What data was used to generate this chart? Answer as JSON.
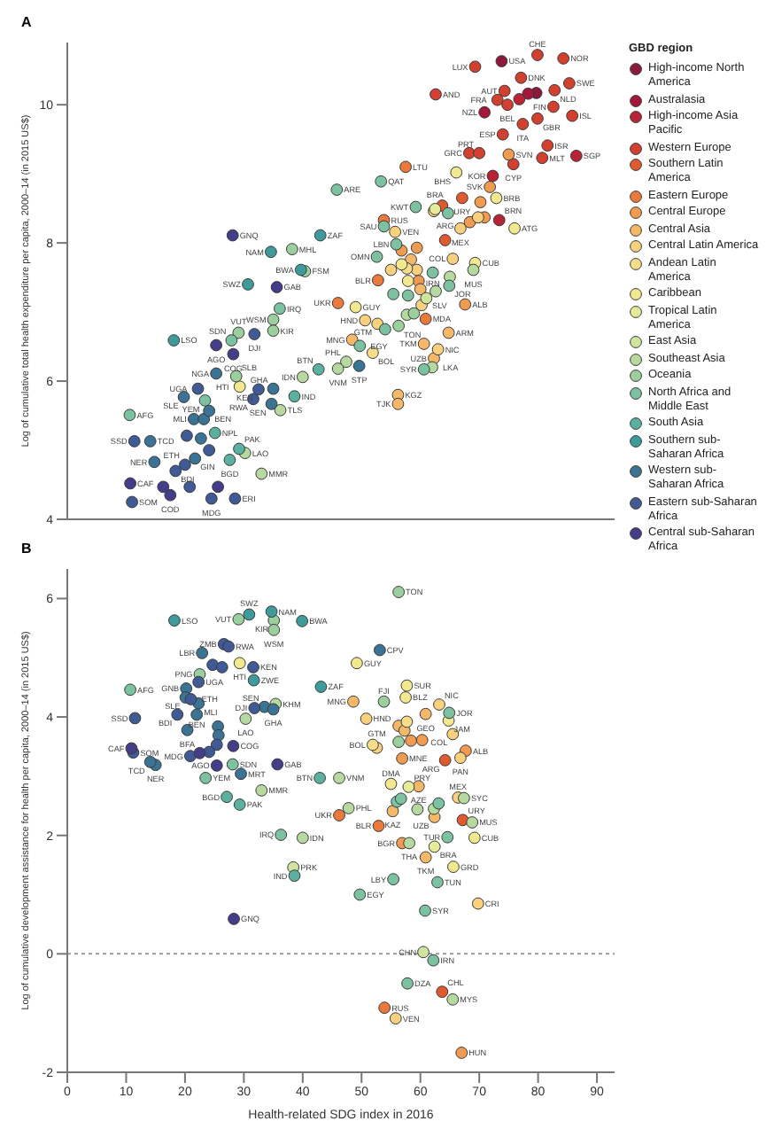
{
  "chart_data": [
    {
      "type": "scatter",
      "title": "A",
      "ylabel": "Log of cumulative total health expenditure per capita, 2000–14 (in 2015 US$)",
      "legend_title": "GBD region",
      "legend": "right",
      "marker": "circle",
      "tick_labels": "y",
      "xlim": [
        0,
        93
      ],
      "xticks": [
        0,
        10,
        20,
        30,
        40,
        50,
        60,
        70,
        80,
        90
      ],
      "ylim": [
        4,
        10.9
      ],
      "yticks": [
        4,
        6,
        8,
        10
      ],
      "series": [
        {
          "name": "High-income North America",
          "color": "#8b1a3a",
          "x": [
            73.8,
            79.7
          ],
          "values": [
            10.63,
            10.17
          ]
        },
        {
          "name": "Australasia",
          "color": "#a3173b",
          "x": [
            78.3,
            70.9
          ],
          "values": [
            10.16,
            9.89
          ]
        },
        {
          "name": "High-income Asia Pacific",
          "color": "#b82436",
          "x": [
            72.3,
            86.5,
            73.4,
            76.8
          ],
          "values": [
            8.97,
            9.26,
            8.33,
            10.08
          ]
        },
        {
          "name": "Western Europe",
          "color": "#d2402f",
          "x": [
            69.3,
            79.9,
            84.3,
            77.1,
            74.3,
            82.8,
            85.3,
            73.1,
            74.8,
            82.6,
            85.8,
            79.9,
            77.4,
            74.0,
            81.6,
            68.3,
            70.0,
            80.7,
            75.8,
            62.6
          ],
          "values": [
            10.55,
            10.72,
            10.67,
            10.39,
            10.2,
            10.21,
            10.31,
            10.07,
            10.0,
            9.97,
            9.84,
            9.8,
            9.72,
            9.57,
            9.41,
            9.3,
            9.3,
            9.23,
            9.14,
            10.15
          ]
        },
        {
          "name": "Southern Latin America",
          "color": "#e05a30",
          "x": [
            64.2,
            67.1,
            63.7
          ],
          "values": [
            8.04,
            8.65,
            8.54
          ]
        },
        {
          "name": "Eastern Europe",
          "color": "#ea7a3c",
          "x": [
            57.5,
            53.8,
            52.8,
            46.0,
            60.9
          ],
          "values": [
            9.1,
            8.33,
            7.46,
            7.13,
            6.9
          ]
        },
        {
          "name": "Central Europe",
          "color": "#f09a52",
          "x": [
            75.0,
            71.8,
            67.6,
            70.2,
            68.4,
            70.9,
            59.4,
            56.8,
            59.7
          ],
          "values": [
            9.28,
            8.81,
            7.11,
            8.59,
            8.3,
            8.37,
            7.93,
            7.89,
            7.45
          ]
        },
        {
          "name": "Central Asia",
          "color": "#f5b869",
          "x": [
            48.4,
            64.8,
            60.6,
            62.3,
            56.2,
            56.2,
            58.4,
            60.0
          ],
          "values": [
            6.6,
            6.7,
            6.54,
            6.33,
            5.8,
            5.67,
            7.76,
            7.33
          ]
        },
        {
          "name": "Central Latin America",
          "color": "#f8d07e",
          "x": [
            66.8,
            65.5,
            60.2,
            63.0,
            52.7,
            50.6,
            55.7,
            62.3,
            69.8,
            55.0,
            59.4
          ],
          "values": [
            8.21,
            7.77,
            7.1,
            6.46,
            6.83,
            6.88,
            8.16,
            8.46,
            8.37,
            7.61,
            7.61
          ]
        },
        {
          "name": "Andean Latin America",
          "color": "#f5dd8a",
          "x": [
            51.9,
            57.7
          ],
          "values": [
            6.41,
            7.63
          ]
        },
        {
          "name": "Caribbean",
          "color": "#f2e890",
          "x": [
            66.1,
            72.9,
            76.0,
            69.3,
            49.0,
            29.3,
            56.8,
            57.9
          ],
          "values": [
            9.02,
            8.65,
            8.21,
            7.71,
            7.07,
            5.92,
            7.69,
            7.45
          ]
        },
        {
          "name": "Tropical Latin America",
          "color": "#e6eb9a",
          "x": [
            62.5
          ],
          "values": [
            8.49
          ]
        },
        {
          "name": "East Asia",
          "color": "#cfe59e",
          "x": [
            61.0
          ],
          "values": [
            7.2
          ]
        },
        {
          "name": "Southeast Asia",
          "color": "#b5d99e",
          "x": [
            69.0,
            62.0,
            47.4,
            46.0,
            40.0,
            36.2,
            30.2,
            33.0,
            62.6,
            65.0,
            57.7
          ],
          "values": [
            7.61,
            6.2,
            6.28,
            6.18,
            6.06,
            5.58,
            4.96,
            4.66,
            7.3,
            7.51,
            6.96
          ]
        },
        {
          "name": "Oceania",
          "color": "#9ccf9e",
          "x": [
            38.2,
            40.4,
            35.0,
            35.0,
            28.7,
            29.1,
            56.3,
            58.9
          ],
          "values": [
            7.91,
            7.59,
            6.89,
            6.73,
            6.07,
            6.7,
            6.8,
            6.98
          ]
        },
        {
          "name": "North Africa and Middle East",
          "color": "#7cc2a0",
          "x": [
            45.8,
            53.3,
            59.2,
            53.8,
            55.9,
            52.6,
            62.1,
            64.9,
            60.6,
            49.7,
            36.1,
            23.4,
            10.6,
            27.9,
            64.7,
            55.4,
            57.9,
            54.0
          ],
          "values": [
            8.77,
            8.89,
            8.52,
            8.24,
            7.98,
            7.8,
            7.57,
            7.38,
            6.17,
            6.51,
            7.05,
            5.72,
            5.51,
            6.59,
            8.43,
            7.26,
            7.24,
            6.75
          ]
        },
        {
          "name": "South Asia",
          "color": "#5bb0a0",
          "x": [
            42.7,
            38.6,
            25.1,
            29.2,
            27.6
          ],
          "values": [
            6.17,
            5.78,
            5.25,
            5.02,
            4.86
          ]
        },
        {
          "name": "Southern sub-Saharan Africa",
          "color": "#3f9a9c",
          "x": [
            43.0,
            34.6,
            39.7,
            30.7,
            18.1
          ],
          "values": [
            8.11,
            7.87,
            7.61,
            7.4,
            6.59
          ]
        },
        {
          "name": "Western sub-Saharan Africa",
          "color": "#3a7394",
          "x": [
            49.6,
            25.3,
            35.0,
            34.7,
            19.8,
            21.5,
            23.2,
            14.1,
            14.8,
            21.7,
            24.1,
            22.7
          ],
          "values": [
            6.22,
            6.11,
            5.89,
            5.67,
            5.77,
            5.45,
            5.45,
            5.13,
            4.83,
            4.88,
            5.57,
            5.17
          ]
        },
        {
          "name": "Eastern sub-Saharan Africa",
          "color": "#3f5a95",
          "x": [
            32.5,
            31.6,
            22.2,
            31.8,
            11.4,
            20.0,
            18.4,
            11.0,
            24.5,
            28.5,
            20.3,
            24.1,
            20.8
          ],
          "values": [
            5.88,
            5.74,
            5.89,
            6.68,
            5.13,
            4.79,
            4.7,
            4.25,
            4.3,
            4.3,
            5.21,
            5.0,
            4.47
          ]
        },
        {
          "name": "Central sub-Saharan Africa",
          "color": "#443e8a",
          "x": [
            28.1,
            35.6,
            25.3,
            28.2,
            10.7,
            17.5,
            16.3,
            25.6
          ],
          "values": [
            8.11,
            7.36,
            6.52,
            6.39,
            4.52,
            4.35,
            4.47,
            4.47
          ]
        }
      ],
      "annotations": [
        {
          "text": "USA",
          "x": 73.8,
          "y": 10.63
        },
        {
          "text": "LUX",
          "x": 69.3,
          "y": 10.55
        },
        {
          "text": "CHE",
          "x": 79.9,
          "y": 10.72
        },
        {
          "text": "NOR",
          "x": 84.3,
          "y": 10.67
        },
        {
          "text": "DNK",
          "x": 77.1,
          "y": 10.39
        },
        {
          "text": "AUT",
          "x": 74.3,
          "y": 10.2
        },
        {
          "text": "NLD",
          "x": 82.8,
          "y": 10.21
        },
        {
          "text": "SWE",
          "x": 85.3,
          "y": 10.31
        },
        {
          "text": "FRA",
          "x": 73.1,
          "y": 10.07
        },
        {
          "text": "BEL",
          "x": 74.8,
          "y": 10.0
        },
        {
          "text": "FIN",
          "x": 82.6,
          "y": 9.97
        },
        {
          "text": "NZL",
          "x": 70.9,
          "y": 9.89
        },
        {
          "text": "ISL",
          "x": 85.8,
          "y": 9.84
        },
        {
          "text": "GBR",
          "x": 79.9,
          "y": 9.8
        },
        {
          "text": "ITA",
          "x": 77.4,
          "y": 9.72
        },
        {
          "text": "ESP",
          "x": 74.0,
          "y": 9.57
        },
        {
          "text": "ISR",
          "x": 81.6,
          "y": 9.41
        },
        {
          "text": "GRC",
          "x": 68.3,
          "y": 9.3
        },
        {
          "text": "PRT",
          "x": 70.0,
          "y": 9.3
        },
        {
          "text": "SVN",
          "x": 75.0,
          "y": 9.28
        },
        {
          "text": "MLT",
          "x": 80.7,
          "y": 9.23
        },
        {
          "text": "SGP",
          "x": 86.5,
          "y": 9.26
        },
        {
          "text": "CYP",
          "x": 75.8,
          "y": 9.14
        },
        {
          "text": "KOR",
          "x": 72.3,
          "y": 8.97
        },
        {
          "text": "SVK",
          "x": 71.8,
          "y": 8.81
        },
        {
          "text": "AND",
          "x": 62.6,
          "y": 10.15
        },
        {
          "text": "LTU",
          "x": 57.5,
          "y": 9.1
        },
        {
          "text": "BHS",
          "x": 66.1,
          "y": 9.02
        },
        {
          "text": "QAT",
          "x": 53.3,
          "y": 8.89
        },
        {
          "text": "ARE",
          "x": 45.8,
          "y": 8.77
        },
        {
          "text": "KWT",
          "x": 59.2,
          "y": 8.52
        },
        {
          "text": "BRA",
          "x": 62.5,
          "y": 8.49
        },
        {
          "text": "URY",
          "x": 67.1,
          "y": 8.65
        },
        {
          "text": "BRB",
          "x": 72.9,
          "y": 8.65
        },
        {
          "text": "RUS",
          "x": 53.8,
          "y": 8.33
        },
        {
          "text": "SAU",
          "x": 53.8,
          "y": 8.24
        },
        {
          "text": "VEN",
          "x": 55.7,
          "y": 8.16
        },
        {
          "text": "BRN",
          "x": 73.4,
          "y": 8.33
        },
        {
          "text": "ATG",
          "x": 76.0,
          "y": 8.21
        },
        {
          "text": "ARG",
          "x": 64.2,
          "y": 8.04
        },
        {
          "text": "MEX",
          "x": 66.8,
          "y": 8.21
        },
        {
          "text": "LBN",
          "x": 55.9,
          "y": 7.98
        },
        {
          "text": "OMN",
          "x": 52.6,
          "y": 7.8
        },
        {
          "text": "COL",
          "x": 65.5,
          "y": 7.77
        },
        {
          "text": "IRN",
          "x": 62.1,
          "y": 7.57
        },
        {
          "text": "CUB",
          "x": 69.3,
          "y": 7.71
        },
        {
          "text": "MUS",
          "x": 69.0,
          "y": 7.61
        },
        {
          "text": "BLR",
          "x": 52.8,
          "y": 7.46
        },
        {
          "text": "JOR",
          "x": 64.9,
          "y": 7.38
        },
        {
          "text": "ALB",
          "x": 67.6,
          "y": 7.11
        },
        {
          "text": "SLV",
          "x": 60.2,
          "y": 7.1
        },
        {
          "text": "GNQ",
          "x": 28.1,
          "y": 8.11
        },
        {
          "text": "ZAF",
          "x": 43.0,
          "y": 8.11
        },
        {
          "text": "NAM",
          "x": 34.6,
          "y": 7.87
        },
        {
          "text": "MHL",
          "x": 38.2,
          "y": 7.91
        },
        {
          "text": "BWA",
          "x": 39.7,
          "y": 7.61
        },
        {
          "text": "FSM",
          "x": 40.4,
          "y": 7.59
        },
        {
          "text": "SWZ",
          "x": 30.7,
          "y": 7.4
        },
        {
          "text": "GAB",
          "x": 35.6,
          "y": 7.36
        },
        {
          "text": "IRQ",
          "x": 36.1,
          "y": 7.05
        },
        {
          "text": "WSM",
          "x": 35.0,
          "y": 6.89
        },
        {
          "text": "KIR",
          "x": 35.0,
          "y": 6.73
        },
        {
          "text": "UKR",
          "x": 46.0,
          "y": 7.13
        },
        {
          "text": "GUY",
          "x": 49.0,
          "y": 7.07
        },
        {
          "text": "GTM",
          "x": 52.7,
          "y": 6.83
        },
        {
          "text": "HND",
          "x": 50.6,
          "y": 6.88
        },
        {
          "text": "TON",
          "x": 56.3,
          "y": 6.8
        },
        {
          "text": "MDA",
          "x": 60.9,
          "y": 6.9
        },
        {
          "text": "ARM",
          "x": 64.8,
          "y": 6.7
        },
        {
          "text": "MNG",
          "x": 48.4,
          "y": 6.6
        },
        {
          "text": "EGY",
          "x": 49.7,
          "y": 6.51
        },
        {
          "text": "TKM",
          "x": 60.6,
          "y": 6.54
        },
        {
          "text": "NIC",
          "x": 63.0,
          "y": 6.46
        },
        {
          "text": "BOL",
          "x": 51.9,
          "y": 6.41
        },
        {
          "text": "UZB",
          "x": 62.3,
          "y": 6.33
        },
        {
          "text": "PHL",
          "x": 47.4,
          "y": 6.28
        },
        {
          "text": "STP",
          "x": 49.6,
          "y": 6.22
        },
        {
          "text": "LKA",
          "x": 62.0,
          "y": 6.2
        },
        {
          "text": "SYR",
          "x": 60.6,
          "y": 6.17
        },
        {
          "text": "VNM",
          "x": 46.0,
          "y": 6.18
        },
        {
          "text": "BTN",
          "x": 42.7,
          "y": 6.17
        },
        {
          "text": "IDN",
          "x": 40.0,
          "y": 6.06
        },
        {
          "text": "KGZ",
          "x": 56.2,
          "y": 5.8
        },
        {
          "text": "TJK",
          "x": 56.2,
          "y": 5.67
        },
        {
          "text": "IND",
          "x": 38.6,
          "y": 5.78
        },
        {
          "text": "TLS",
          "x": 36.2,
          "y": 5.58
        },
        {
          "text": "SEN",
          "x": 34.7,
          "y": 5.67
        },
        {
          "text": "GHA",
          "x": 35.0,
          "y": 5.89
        },
        {
          "text": "KEN",
          "x": 32.5,
          "y": 5.88
        },
        {
          "text": "HTI",
          "x": 29.3,
          "y": 5.92
        },
        {
          "text": "SLB",
          "x": 28.7,
          "y": 6.07
        },
        {
          "text": "RWA",
          "x": 31.6,
          "y": 5.74
        },
        {
          "text": "LSO",
          "x": 18.1,
          "y": 6.59
        },
        {
          "text": "SDN",
          "x": 27.9,
          "y": 6.59
        },
        {
          "text": "AGO",
          "x": 25.3,
          "y": 6.52
        },
        {
          "text": "VUT",
          "x": 29.1,
          "y": 6.7
        },
        {
          "text": "DJI",
          "x": 31.8,
          "y": 6.68
        },
        {
          "text": "COG",
          "x": 28.2,
          "y": 6.39
        },
        {
          "text": "NGA",
          "x": 25.3,
          "y": 6.11
        },
        {
          "text": "UGA",
          "x": 22.2,
          "y": 5.89
        },
        {
          "text": "SLE",
          "x": 19.8,
          "y": 5.77
        },
        {
          "text": "YEM",
          "x": 23.4,
          "y": 5.72
        },
        {
          "text": "MLI",
          "x": 21.5,
          "y": 5.45
        },
        {
          "text": "BEN",
          "x": 23.2,
          "y": 5.45
        },
        {
          "text": "AFG",
          "x": 10.6,
          "y": 5.51
        },
        {
          "text": "SSD",
          "x": 11.4,
          "y": 5.13
        },
        {
          "text": "TCD",
          "x": 14.1,
          "y": 5.13
        },
        {
          "text": "NPL",
          "x": 25.1,
          "y": 5.25
        },
        {
          "text": "PAK",
          "x": 29.2,
          "y": 5.02
        },
        {
          "text": "LAO",
          "x": 30.2,
          "y": 4.96
        },
        {
          "text": "ETH",
          "x": 20.0,
          "y": 4.79
        },
        {
          "text": "NER",
          "x": 14.8,
          "y": 4.83
        },
        {
          "text": "BDI",
          "x": 18.4,
          "y": 4.7
        },
        {
          "text": "GIN",
          "x": 21.7,
          "y": 4.88
        },
        {
          "text": "BGD",
          "x": 27.6,
          "y": 4.86
        },
        {
          "text": "MMR",
          "x": 33.0,
          "y": 4.66
        },
        {
          "text": "CAF",
          "x": 10.7,
          "y": 4.52
        },
        {
          "text": "SOM",
          "x": 11.0,
          "y": 4.25
        },
        {
          "text": "COD",
          "x": 17.5,
          "y": 4.35
        },
        {
          "text": "MDG",
          "x": 24.5,
          "y": 4.3
        },
        {
          "text": "ERI",
          "x": 28.5,
          "y": 4.3
        }
      ]
    },
    {
      "type": "scatter",
      "title": "B",
      "xlabel": "Health-related SDG index in 2016",
      "ylabel": "Log of cumulative development assistance for health per capita, 2000–14 (in 2015 US$)",
      "marker": "circle",
      "xlim": [
        0,
        93
      ],
      "xticks": [
        0,
        10,
        20,
        30,
        40,
        50,
        60,
        70,
        80,
        90
      ],
      "ylim": [
        -2,
        6.5
      ],
      "yticks": [
        -2,
        0,
        2,
        4,
        6
      ],
      "ref_lines": [
        {
          "axis": "y",
          "value": 0,
          "color": "#999999",
          "line_style": "dotted"
        }
      ],
      "series": [
        {
          "color": "#e05a30",
          "x": [
            64.2,
            67.2,
            63.7
          ],
          "values": [
            3.27,
            2.26,
            -0.64
          ]
        },
        {
          "color": "#ea7a3c",
          "x": [
            46.2,
            52.9,
            53.9
          ],
          "values": [
            2.34,
            2.16,
            -0.91
          ]
        },
        {
          "color": "#f09a52",
          "x": [
            67.7,
            56.9,
            56.9,
            67.0,
            58.4,
            60.3
          ],
          "values": [
            3.43,
            3.3,
            1.87,
            -1.67,
            3.6,
            3.61
          ]
        },
        {
          "color": "#f5b869",
          "x": [
            48.6,
            60.9,
            59.7,
            55.3,
            62.4,
            60.9,
            56.3,
            57.3
          ],
          "values": [
            4.26,
            4.05,
            2.83,
            2.41,
            2.31,
            1.63,
            3.85,
            3.77
          ]
        },
        {
          "color": "#f8d07e",
          "x": [
            63.2,
            65.5,
            66.8,
            66.4,
            50.8,
            52.6,
            69.8,
            55.8
          ],
          "values": [
            4.21,
            3.71,
            3.31,
            2.64,
            3.97,
            3.48,
            0.85,
            -1.09
          ]
        },
        {
          "color": "#f5dd8a",
          "x": [
            51.9,
            57.7
          ],
          "values": [
            3.53,
            3.92
          ]
        },
        {
          "color": "#f2e890",
          "x": [
            49.2,
            57.7,
            57.5,
            64.8,
            55.0,
            69.2,
            65.6,
            29.3
          ],
          "values": [
            4.91,
            4.53,
            4.33,
            3.94,
            2.87,
            1.96,
            1.47,
            4.91
          ]
        },
        {
          "color": "#e6eb9a",
          "x": [
            58.0,
            62.4
          ],
          "values": [
            2.82,
            1.81
          ]
        },
        {
          "color": "#cfe59e",
          "x": [
            38.4,
            60.5
          ],
          "values": [
            1.46,
            0.03
          ]
        },
        {
          "color": "#b5d99e",
          "x": [
            35.4,
            30.3,
            33.0,
            46.2,
            47.8,
            40.0,
            58.1,
            67.4,
            68.8,
            65.5,
            59.5,
            62.3
          ],
          "values": [
            4.22,
            3.97,
            2.76,
            2.97,
            2.46,
            1.96,
            1.87,
            2.63,
            2.22,
            -0.77,
            2.44,
            2.45
          ]
        },
        {
          "color": "#9ccf9e",
          "x": [
            56.3,
            53.8,
            29.1,
            35.1,
            35.1,
            22.5,
            56.3
          ],
          "values": [
            6.11,
            4.26,
            5.65,
            5.63,
            5.47,
            4.72,
            3.58
          ]
        },
        {
          "color": "#7cc2a0",
          "x": [
            10.7,
            23.5,
            28.1,
            36.3,
            49.7,
            64.9,
            64.6,
            55.4,
            62.9,
            60.8,
            62.2,
            57.8,
            56.0,
            56.7,
            63.1
          ],
          "values": [
            4.46,
            2.97,
            3.2,
            2.01,
            1.0,
            4.07,
            1.97,
            1.26,
            1.21,
            0.73,
            -0.11,
            -0.5,
            2.57,
            2.62,
            2.54
          ]
        },
        {
          "color": "#5bb0a0",
          "x": [
            42.9,
            27.1,
            29.3,
            38.6
          ],
          "values": [
            2.97,
            2.65,
            2.52,
            1.32
          ]
        },
        {
          "color": "#3f9a9c",
          "x": [
            18.2,
            30.9,
            34.7,
            39.9,
            43.1,
            31.7
          ],
          "values": [
            5.63,
            5.73,
            5.78,
            5.62,
            4.51,
            4.62
          ]
        },
        {
          "color": "#3a7394",
          "x": [
            53.1,
            22.9,
            20.2,
            20.1,
            22.3,
            22.0,
            20.4,
            33.5,
            35.0,
            29.5,
            15.0,
            14.1,
            25.6,
            25.7
          ],
          "values": [
            5.13,
            5.08,
            4.48,
            4.33,
            4.23,
            4.04,
            3.78,
            4.17,
            4.13,
            3.04,
            3.19,
            3.24,
            3.84,
            3.69
          ]
        },
        {
          "color": "#3f5a95",
          "x": [
            26.6,
            27.4,
            31.6,
            22.3,
            21.0,
            31.8,
            18.7,
            11.5,
            11.2,
            20.9,
            24.7,
            26.3,
            25.4,
            24.1
          ],
          "values": [
            5.23,
            5.19,
            4.84,
            4.59,
            4.3,
            4.15,
            4.04,
            3.98,
            3.4,
            3.34,
            4.88,
            4.84,
            3.53,
            3.41
          ]
        },
        {
          "color": "#443e8a",
          "x": [
            10.9,
            25.4,
            28.2,
            35.7,
            28.3,
            22.5
          ],
          "values": [
            3.47,
            3.18,
            3.51,
            3.2,
            0.59,
            3.39
          ]
        }
      ],
      "annotations": [
        {
          "text": "TON",
          "x": 56.3,
          "y": 6.11
        },
        {
          "text": "LSO",
          "x": 18.2,
          "y": 5.63
        },
        {
          "text": "SWZ",
          "x": 30.9,
          "y": 5.73
        },
        {
          "text": "NAM",
          "x": 34.7,
          "y": 5.78
        },
        {
          "text": "VUT",
          "x": 29.1,
          "y": 5.65
        },
        {
          "text": "KIR",
          "x": 35.1,
          "y": 5.63
        },
        {
          "text": "WSM",
          "x": 35.1,
          "y": 5.47
        },
        {
          "text": "BWA",
          "x": 39.9,
          "y": 5.62
        },
        {
          "text": "ZMB",
          "x": 26.6,
          "y": 5.23
        },
        {
          "text": "RWA",
          "x": 27.4,
          "y": 5.19
        },
        {
          "text": "LBR",
          "x": 22.9,
          "y": 5.08
        },
        {
          "text": "CPV",
          "x": 53.1,
          "y": 5.13
        },
        {
          "text": "GUY",
          "x": 49.2,
          "y": 4.91
        },
        {
          "text": "HTI",
          "x": 29.3,
          "y": 4.91
        },
        {
          "text": "KEN",
          "x": 31.6,
          "y": 4.84
        },
        {
          "text": "PNG",
          "x": 22.5,
          "y": 4.72
        },
        {
          "text": "ZWE",
          "x": 31.7,
          "y": 4.62
        },
        {
          "text": "UGA",
          "x": 22.3,
          "y": 4.59
        },
        {
          "text": "ZAF",
          "x": 43.1,
          "y": 4.51
        },
        {
          "text": "SUR",
          "x": 57.7,
          "y": 4.53
        },
        {
          "text": "BLZ",
          "x": 57.5,
          "y": 4.33
        },
        {
          "text": "GNB",
          "x": 20.2,
          "y": 4.48
        },
        {
          "text": "AFG",
          "x": 10.7,
          "y": 4.46
        },
        {
          "text": "SLE",
          "x": 20.1,
          "y": 4.33
        },
        {
          "text": "ETH",
          "x": 21.0,
          "y": 4.3
        },
        {
          "text": "MLI",
          "x": 22.3,
          "y": 4.23
        },
        {
          "text": "BEN",
          "x": 22.0,
          "y": 4.04
        },
        {
          "text": "BDI",
          "x": 18.7,
          "y": 4.04
        },
        {
          "text": "SSD",
          "x": 11.5,
          "y": 3.98
        },
        {
          "text": "BFA",
          "x": 20.4,
          "y": 3.78
        },
        {
          "text": "DJI",
          "x": 31.8,
          "y": 4.15
        },
        {
          "text": "SEN",
          "x": 33.5,
          "y": 4.17
        },
        {
          "text": "KHM",
          "x": 35.4,
          "y": 4.22
        },
        {
          "text": "GHA",
          "x": 35.0,
          "y": 4.13
        },
        {
          "text": "LAO",
          "x": 30.3,
          "y": 3.97
        },
        {
          "text": "MNG",
          "x": 48.6,
          "y": 4.26
        },
        {
          "text": "FJI",
          "x": 53.8,
          "y": 4.26
        },
        {
          "text": "GEO",
          "x": 60.9,
          "y": 4.05
        },
        {
          "text": "NIC",
          "x": 63.2,
          "y": 4.21
        },
        {
          "text": "JOR",
          "x": 64.9,
          "y": 4.07
        },
        {
          "text": "HND",
          "x": 50.8,
          "y": 3.97
        },
        {
          "text": "JAM",
          "x": 64.8,
          "y": 3.94
        },
        {
          "text": "COL",
          "x": 65.5,
          "y": 3.71
        },
        {
          "text": "BOL",
          "x": 51.9,
          "y": 3.53
        },
        {
          "text": "GTM",
          "x": 52.6,
          "y": 3.48
        },
        {
          "text": "COG",
          "x": 28.2,
          "y": 3.51
        },
        {
          "text": "CAF",
          "x": 10.9,
          "y": 3.47
        },
        {
          "text": "SOM",
          "x": 11.2,
          "y": 3.4
        },
        {
          "text": "MDG",
          "x": 20.9,
          "y": 3.34
        },
        {
          "text": "TCD",
          "x": 14.1,
          "y": 3.24
        },
        {
          "text": "NER",
          "x": 15.0,
          "y": 3.19
        },
        {
          "text": "AGO",
          "x": 25.4,
          "y": 3.18
        },
        {
          "text": "SDN",
          "x": 28.1,
          "y": 3.2
        },
        {
          "text": "GAB",
          "x": 35.7,
          "y": 3.2
        },
        {
          "text": "MRT",
          "x": 29.5,
          "y": 3.04
        },
        {
          "text": "YEM",
          "x": 23.5,
          "y": 2.97
        },
        {
          "text": "ALB",
          "x": 67.7,
          "y": 3.43
        },
        {
          "text": "PAN",
          "x": 66.8,
          "y": 3.31
        },
        {
          "text": "MNE",
          "x": 56.9,
          "y": 3.3
        },
        {
          "text": "ARG",
          "x": 64.2,
          "y": 3.27
        },
        {
          "text": "VNM",
          "x": 46.2,
          "y": 2.97
        },
        {
          "text": "BTN",
          "x": 42.9,
          "y": 2.97
        },
        {
          "text": "DMA",
          "x": 55.0,
          "y": 2.87
        },
        {
          "text": "PRY",
          "x": 58.0,
          "y": 2.82
        },
        {
          "text": "AZE",
          "x": 59.7,
          "y": 2.83
        },
        {
          "text": "MMR",
          "x": 33.0,
          "y": 2.76
        },
        {
          "text": "BGD",
          "x": 27.1,
          "y": 2.65
        },
        {
          "text": "PAK",
          "x": 29.3,
          "y": 2.52
        },
        {
          "text": "MEX",
          "x": 66.4,
          "y": 2.64
        },
        {
          "text": "SYC",
          "x": 67.4,
          "y": 2.63
        },
        {
          "text": "PHL",
          "x": 47.8,
          "y": 2.46
        },
        {
          "text": "UKR",
          "x": 46.2,
          "y": 2.34
        },
        {
          "text": "KAZ",
          "x": 55.3,
          "y": 2.41
        },
        {
          "text": "UZB",
          "x": 62.4,
          "y": 2.31
        },
        {
          "text": "URY",
          "x": 67.2,
          "y": 2.26
        },
        {
          "text": "MUS",
          "x": 68.8,
          "y": 2.22
        },
        {
          "text": "BLR",
          "x": 52.9,
          "y": 2.16
        },
        {
          "text": "IRQ",
          "x": 36.3,
          "y": 2.01
        },
        {
          "text": "IDN",
          "x": 40.0,
          "y": 1.96
        },
        {
          "text": "CUB",
          "x": 69.2,
          "y": 1.96
        },
        {
          "text": "TUR",
          "x": 64.6,
          "y": 1.97
        },
        {
          "text": "THA",
          "x": 58.1,
          "y": 1.87
        },
        {
          "text": "BGR",
          "x": 56.9,
          "y": 1.87
        },
        {
          "text": "BRA",
          "x": 62.4,
          "y": 1.81
        },
        {
          "text": "TKM",
          "x": 60.9,
          "y": 1.63
        },
        {
          "text": "GRD",
          "x": 65.6,
          "y": 1.47
        },
        {
          "text": "PRK",
          "x": 38.4,
          "y": 1.46
        },
        {
          "text": "IND",
          "x": 38.6,
          "y": 1.32
        },
        {
          "text": "LBY",
          "x": 55.4,
          "y": 1.26
        },
        {
          "text": "TUN",
          "x": 62.9,
          "y": 1.21
        },
        {
          "text": "EGY",
          "x": 49.7,
          "y": 1.0
        },
        {
          "text": "CRI",
          "x": 69.8,
          "y": 0.85
        },
        {
          "text": "SYR",
          "x": 60.8,
          "y": 0.73
        },
        {
          "text": "GNQ",
          "x": 28.3,
          "y": 0.59
        },
        {
          "text": "CHN",
          "x": 60.5,
          "y": 0.03
        },
        {
          "text": "IRN",
          "x": 62.2,
          "y": -0.11
        },
        {
          "text": "DZA",
          "x": 57.8,
          "y": -0.5
        },
        {
          "text": "CHL",
          "x": 63.7,
          "y": -0.64
        },
        {
          "text": "MYS",
          "x": 65.5,
          "y": -0.77
        },
        {
          "text": "RUS",
          "x": 53.9,
          "y": -0.91
        },
        {
          "text": "VEN",
          "x": 55.8,
          "y": -1.09
        },
        {
          "text": "HUN",
          "x": 67.0,
          "y": -1.67
        }
      ]
    }
  ]
}
